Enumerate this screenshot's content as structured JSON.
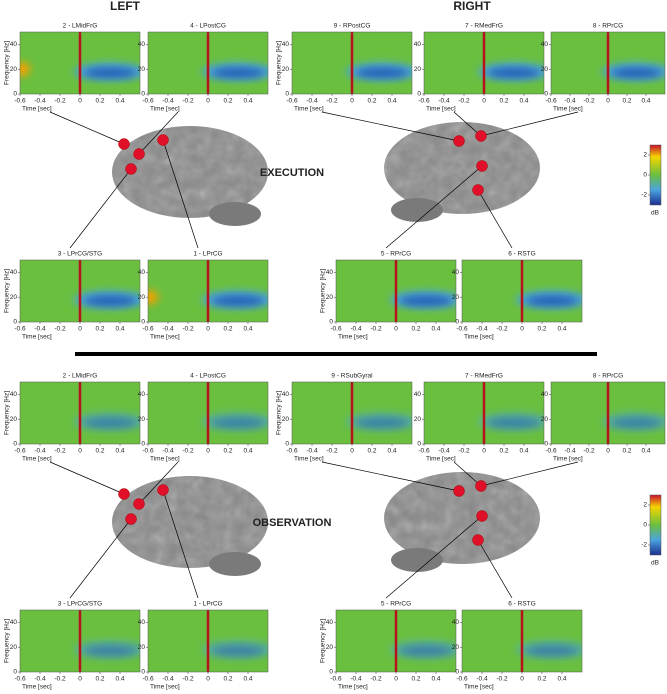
{
  "headers": {
    "left": "LEFT",
    "right": "RIGHT"
  },
  "axes": {
    "xlabel": "Time [sec]",
    "ylabel": "Frequency [Hz]",
    "xlim": [
      -0.6,
      0.6
    ],
    "ylim": [
      0,
      50
    ],
    "xticks": [
      -0.6,
      -0.4,
      -0.2,
      0,
      0.2,
      0.4
    ],
    "yticks": [
      0,
      20,
      40
    ]
  },
  "colorbar": {
    "label": "dB",
    "lim": [
      -3,
      3
    ],
    "ticks": [
      2,
      0,
      -2
    ]
  },
  "sections": [
    {
      "label": "EXECUTION",
      "panels": [
        "2 - LMidFrG",
        "4 - LPostCG",
        "9 - RPostCG",
        "7 - RMedFrG",
        "8 - RPrCG",
        "3 - LPrCG/STG",
        "1 - LPrCG",
        "5 - RPrCG",
        "6 - RSTG"
      ]
    },
    {
      "label": "OBSERVATION",
      "panels": [
        "2 - LMidFrG",
        "4 - LPostCG",
        "9 - RSubGyral",
        "7 - RMedFrG",
        "8 - RPrCG",
        "3 - LPrCG/STG",
        "1 - LPrCG",
        "5 - RPrCG",
        "6 - RSTG"
      ]
    }
  ]
}
